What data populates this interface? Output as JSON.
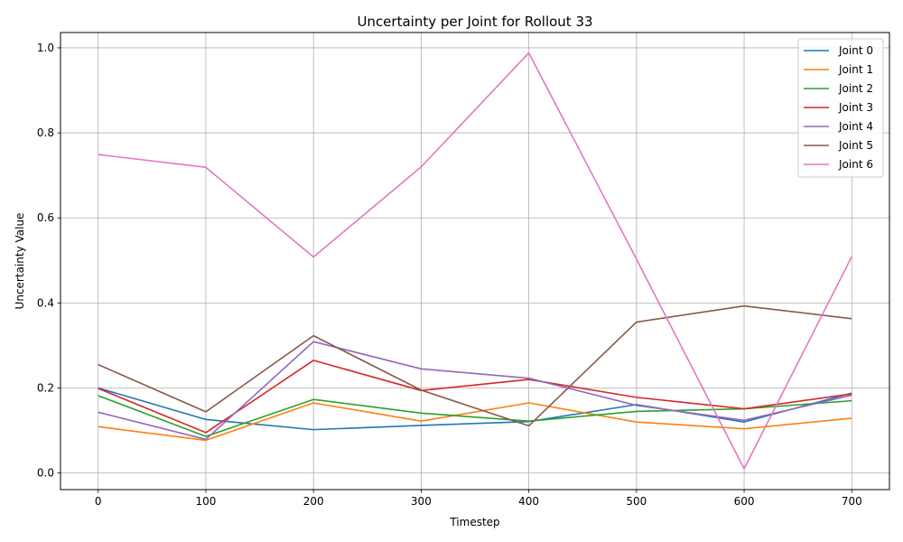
{
  "chart_data": {
    "type": "line",
    "title": "Uncertainty per Joint for Rollout 33",
    "xlabel": "Timestep",
    "ylabel": "Uncertainty Value",
    "x": [
      0,
      100,
      200,
      300,
      400,
      500,
      600,
      700
    ],
    "xticks": [
      "0",
      "100",
      "200",
      "300",
      "400",
      "500",
      "600",
      "700"
    ],
    "yticks": [
      "0.0",
      "0.2",
      "0.4",
      "0.6",
      "0.8",
      "1.0"
    ],
    "xlim": [
      -35,
      735
    ],
    "ylim": [
      -0.039,
      1.036
    ],
    "grid": true,
    "legend_position": "top-right",
    "series": [
      {
        "name": "Joint 0",
        "color": "#1f77b4",
        "values": [
          0.2,
          0.126,
          0.102,
          0.112,
          0.121,
          0.161,
          0.12,
          0.188
        ]
      },
      {
        "name": "Joint 1",
        "color": "#ff7f0e",
        "values": [
          0.109,
          0.077,
          0.165,
          0.122,
          0.165,
          0.12,
          0.104,
          0.129
        ]
      },
      {
        "name": "Joint 2",
        "color": "#2ca02c",
        "values": [
          0.182,
          0.086,
          0.173,
          0.141,
          0.122,
          0.145,
          0.151,
          0.17
        ]
      },
      {
        "name": "Joint 3",
        "color": "#d62728",
        "values": [
          0.199,
          0.095,
          0.265,
          0.194,
          0.22,
          0.178,
          0.151,
          0.186
        ]
      },
      {
        "name": "Joint 4",
        "color": "#9467bd",
        "values": [
          0.143,
          0.079,
          0.309,
          0.245,
          0.223,
          0.159,
          0.124,
          0.183
        ]
      },
      {
        "name": "Joint 5",
        "color": "#8c564b",
        "values": [
          0.255,
          0.144,
          0.323,
          0.195,
          0.111,
          0.355,
          0.393,
          0.363
        ]
      },
      {
        "name": "Joint 6",
        "color": "#e377c2",
        "values": [
          0.749,
          0.719,
          0.508,
          0.72,
          0.988,
          0.503,
          0.01,
          0.509
        ]
      }
    ]
  }
}
